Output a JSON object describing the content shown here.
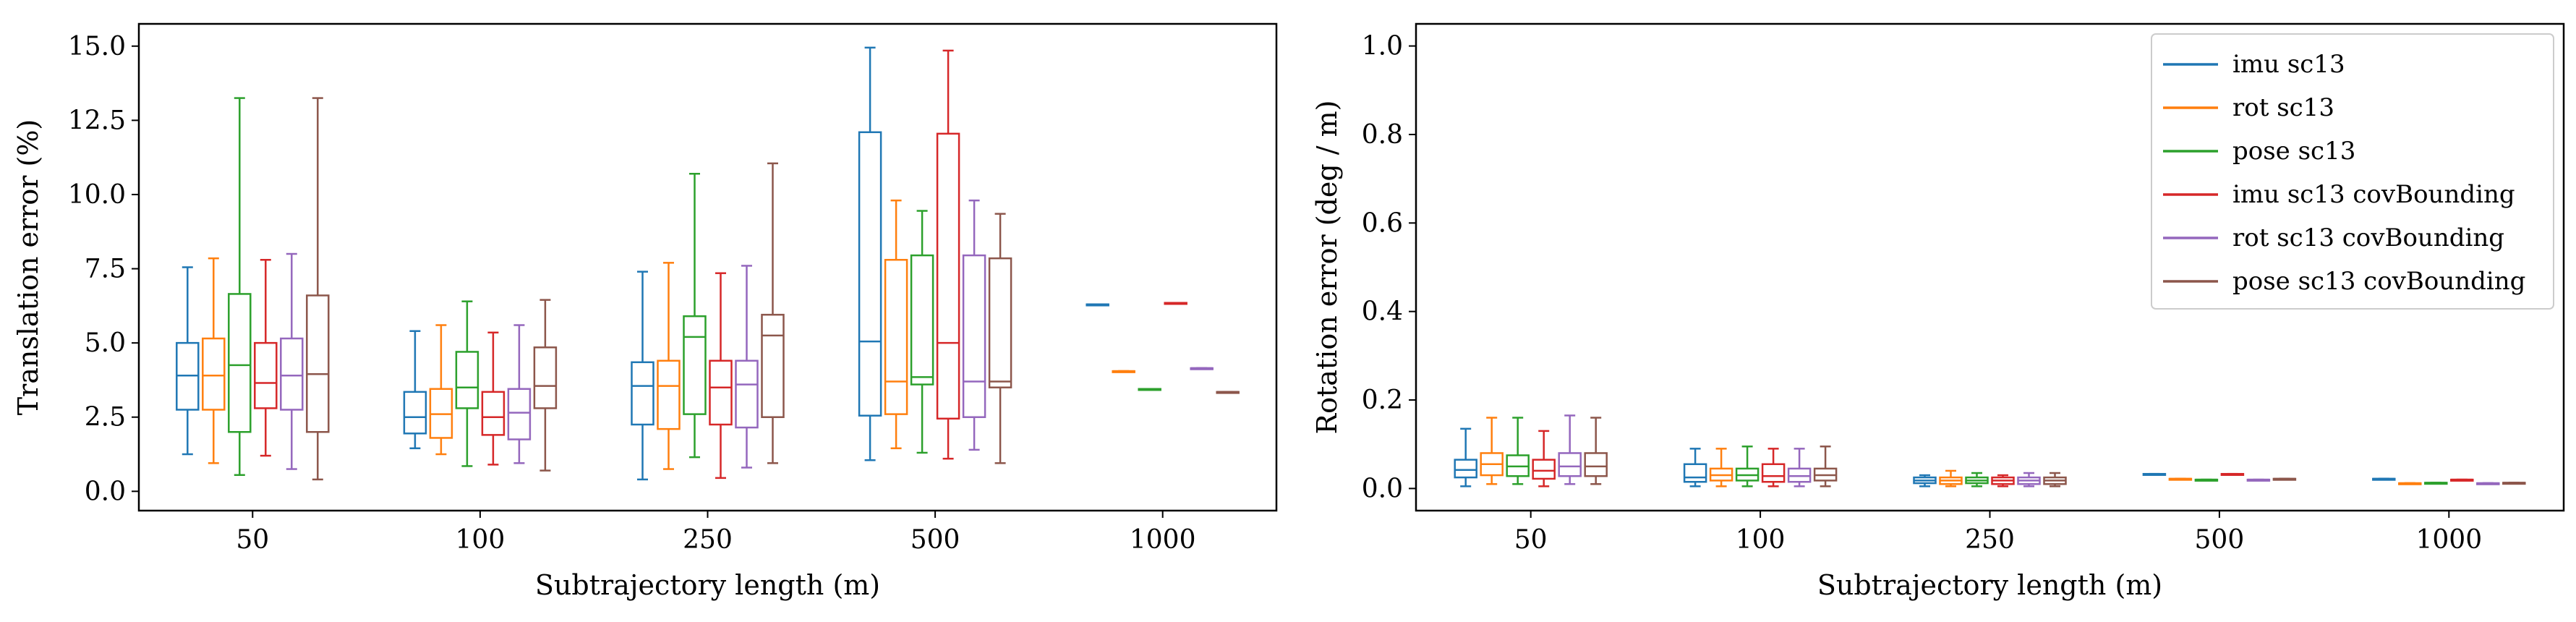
{
  "chart_data": [
    {
      "type": "box",
      "xlabel": "Subtrajectory length (m)",
      "ylabel": "Translation error (%)",
      "ylim": [
        -0.65,
        15.75
      ],
      "yticks": [
        0.0,
        2.5,
        5.0,
        7.5,
        10.0,
        12.5,
        15.0
      ],
      "ytick_labels": [
        "0.0",
        "2.5",
        "5.0",
        "7.5",
        "10.0",
        "12.5",
        "15.0"
      ],
      "categories": [
        "50",
        "100",
        "250",
        "500",
        "1000"
      ],
      "series": [
        {
          "name": "imu sc13",
          "color": "#1f77b4",
          "boxes": [
            {
              "whislo": 1.25,
              "q1": 2.75,
              "med": 3.9,
              "q3": 5.0,
              "whishi": 7.55
            },
            {
              "whislo": 1.45,
              "q1": 1.95,
              "med": 2.5,
              "q3": 3.35,
              "whishi": 5.4
            },
            {
              "whislo": 0.4,
              "q1": 2.25,
              "med": 3.55,
              "q3": 4.35,
              "whishi": 7.4
            },
            {
              "whislo": 1.05,
              "q1": 2.55,
              "med": 5.05,
              "q3": 12.1,
              "whishi": 14.95
            },
            {
              "whislo": 6.3,
              "q1": 6.3,
              "med": 6.3,
              "q3": 6.3,
              "whishi": 6.3
            }
          ]
        },
        {
          "name": "rot sc13",
          "color": "#ff7f0e",
          "boxes": [
            {
              "whislo": 0.95,
              "q1": 2.75,
              "med": 3.9,
              "q3": 5.15,
              "whishi": 7.85
            },
            {
              "whislo": 1.25,
              "q1": 1.8,
              "med": 2.6,
              "q3": 3.45,
              "whishi": 5.6
            },
            {
              "whislo": 0.75,
              "q1": 2.1,
              "med": 3.55,
              "q3": 4.4,
              "whishi": 7.7
            },
            {
              "whislo": 1.45,
              "q1": 2.6,
              "med": 3.7,
              "q3": 7.8,
              "whishi": 9.8
            },
            {
              "whislo": 4.05,
              "q1": 4.05,
              "med": 4.05,
              "q3": 4.05,
              "whishi": 4.05
            }
          ]
        },
        {
          "name": "pose sc13",
          "color": "#2ca02c",
          "boxes": [
            {
              "whislo": 0.55,
              "q1": 2.0,
              "med": 4.25,
              "q3": 6.65,
              "whishi": 13.25
            },
            {
              "whislo": 0.85,
              "q1": 2.8,
              "med": 3.5,
              "q3": 4.7,
              "whishi": 6.4
            },
            {
              "whislo": 1.15,
              "q1": 2.6,
              "med": 5.2,
              "q3": 5.9,
              "whishi": 10.7
            },
            {
              "whislo": 1.3,
              "q1": 3.6,
              "med": 3.85,
              "q3": 7.95,
              "whishi": 9.45
            },
            {
              "whislo": 3.45,
              "q1": 3.45,
              "med": 3.45,
              "q3": 3.45,
              "whishi": 3.45
            }
          ]
        },
        {
          "name": "imu sc13 covBounding",
          "color": "#d62728",
          "boxes": [
            {
              "whislo": 1.2,
              "q1": 2.8,
              "med": 3.65,
              "q3": 5.0,
              "whishi": 7.8
            },
            {
              "whislo": 0.9,
              "q1": 1.9,
              "med": 2.5,
              "q3": 3.35,
              "whishi": 5.35
            },
            {
              "whislo": 0.45,
              "q1": 2.25,
              "med": 3.5,
              "q3": 4.4,
              "whishi": 7.35
            },
            {
              "whislo": 1.1,
              "q1": 2.45,
              "med": 5.0,
              "q3": 12.05,
              "whishi": 14.85
            },
            {
              "whislo": 6.35,
              "q1": 6.35,
              "med": 6.35,
              "q3": 6.35,
              "whishi": 6.35
            }
          ]
        },
        {
          "name": "rot sc13 covBounding",
          "color": "#9467bd",
          "boxes": [
            {
              "whislo": 0.75,
              "q1": 2.75,
              "med": 3.9,
              "q3": 5.15,
              "whishi": 8.0
            },
            {
              "whislo": 0.95,
              "q1": 1.75,
              "med": 2.65,
              "q3": 3.45,
              "whishi": 5.6
            },
            {
              "whislo": 0.8,
              "q1": 2.15,
              "med": 3.6,
              "q3": 4.4,
              "whishi": 7.6
            },
            {
              "whislo": 1.4,
              "q1": 2.5,
              "med": 3.7,
              "q3": 7.95,
              "whishi": 9.8
            },
            {
              "whislo": 4.15,
              "q1": 4.15,
              "med": 4.15,
              "q3": 4.15,
              "whishi": 4.15
            }
          ]
        },
        {
          "name": "pose sc13 covBounding",
          "color": "#8c564b",
          "boxes": [
            {
              "whislo": 0.4,
              "q1": 2.0,
              "med": 3.95,
              "q3": 6.6,
              "whishi": 13.25
            },
            {
              "whislo": 0.7,
              "q1": 2.8,
              "med": 3.55,
              "q3": 4.85,
              "whishi": 6.45
            },
            {
              "whislo": 0.95,
              "q1": 2.5,
              "med": 5.25,
              "q3": 5.95,
              "whishi": 11.05
            },
            {
              "whislo": 0.95,
              "q1": 3.5,
              "med": 3.7,
              "q3": 7.85,
              "whishi": 9.35
            },
            {
              "whislo": 3.35,
              "q1": 3.35,
              "med": 3.35,
              "q3": 3.35,
              "whishi": 3.35
            }
          ]
        }
      ]
    },
    {
      "type": "box",
      "xlabel": "Subtrajectory length (m)",
      "ylabel": "Rotation error (deg / m)",
      "ylim": [
        -0.05,
        1.05
      ],
      "yticks": [
        0.0,
        0.2,
        0.4,
        0.6,
        0.8,
        1.0
      ],
      "ytick_labels": [
        "0.0",
        "0.2",
        "0.4",
        "0.6",
        "0.8",
        "1.0"
      ],
      "categories": [
        "50",
        "100",
        "250",
        "500",
        "1000"
      ],
      "legend": {
        "placement": "top-right"
      },
      "series": [
        {
          "name": "imu sc13",
          "color": "#1f77b4",
          "boxes": [
            {
              "whislo": 0.005,
              "q1": 0.025,
              "med": 0.042,
              "q3": 0.065,
              "whishi": 0.135
            },
            {
              "whislo": 0.005,
              "q1": 0.015,
              "med": 0.025,
              "q3": 0.055,
              "whishi": 0.09
            },
            {
              "whislo": 0.005,
              "q1": 0.012,
              "med": 0.018,
              "q3": 0.025,
              "whishi": 0.03
            },
            {
              "whislo": 0.033,
              "q1": 0.033,
              "med": 0.033,
              "q3": 0.033,
              "whishi": 0.033
            },
            {
              "whislo": 0.022,
              "q1": 0.022,
              "med": 0.022,
              "q3": 0.022,
              "whishi": 0.022
            }
          ]
        },
        {
          "name": "rot sc13",
          "color": "#ff7f0e",
          "boxes": [
            {
              "whislo": 0.01,
              "q1": 0.03,
              "med": 0.055,
              "q3": 0.08,
              "whishi": 0.16
            },
            {
              "whislo": 0.005,
              "q1": 0.018,
              "med": 0.03,
              "q3": 0.045,
              "whishi": 0.09
            },
            {
              "whislo": 0.005,
              "q1": 0.01,
              "med": 0.018,
              "q3": 0.025,
              "whishi": 0.04
            },
            {
              "whislo": 0.022,
              "q1": 0.022,
              "med": 0.022,
              "q3": 0.022,
              "whishi": 0.022
            },
            {
              "whislo": 0.012,
              "q1": 0.012,
              "med": 0.012,
              "q3": 0.012,
              "whishi": 0.012
            }
          ]
        },
        {
          "name": "pose sc13",
          "color": "#2ca02c",
          "boxes": [
            {
              "whislo": 0.01,
              "q1": 0.028,
              "med": 0.05,
              "q3": 0.075,
              "whishi": 0.16
            },
            {
              "whislo": 0.005,
              "q1": 0.018,
              "med": 0.03,
              "q3": 0.045,
              "whishi": 0.095
            },
            {
              "whislo": 0.005,
              "q1": 0.012,
              "med": 0.018,
              "q3": 0.025,
              "whishi": 0.035
            },
            {
              "whislo": 0.02,
              "q1": 0.02,
              "med": 0.02,
              "q3": 0.02,
              "whishi": 0.02
            },
            {
              "whislo": 0.013,
              "q1": 0.013,
              "med": 0.013,
              "q3": 0.013,
              "whishi": 0.013
            }
          ]
        },
        {
          "name": "imu sc13 covBounding",
          "color": "#d62728",
          "boxes": [
            {
              "whislo": 0.005,
              "q1": 0.022,
              "med": 0.04,
              "q3": 0.065,
              "whishi": 0.13
            },
            {
              "whislo": 0.005,
              "q1": 0.015,
              "med": 0.028,
              "q3": 0.055,
              "whishi": 0.09
            },
            {
              "whislo": 0.005,
              "q1": 0.01,
              "med": 0.018,
              "q3": 0.025,
              "whishi": 0.03
            },
            {
              "whislo": 0.033,
              "q1": 0.033,
              "med": 0.033,
              "q3": 0.033,
              "whishi": 0.033
            },
            {
              "whislo": 0.02,
              "q1": 0.02,
              "med": 0.02,
              "q3": 0.02,
              "whishi": 0.02
            }
          ]
        },
        {
          "name": "rot sc13 covBounding",
          "color": "#9467bd",
          "boxes": [
            {
              "whislo": 0.01,
              "q1": 0.028,
              "med": 0.05,
              "q3": 0.08,
              "whishi": 0.165
            },
            {
              "whislo": 0.005,
              "q1": 0.015,
              "med": 0.028,
              "q3": 0.045,
              "whishi": 0.09
            },
            {
              "whislo": 0.005,
              "q1": 0.01,
              "med": 0.018,
              "q3": 0.025,
              "whishi": 0.035
            },
            {
              "whislo": 0.02,
              "q1": 0.02,
              "med": 0.02,
              "q3": 0.02,
              "whishi": 0.02
            },
            {
              "whislo": 0.012,
              "q1": 0.012,
              "med": 0.012,
              "q3": 0.012,
              "whishi": 0.012
            }
          ]
        },
        {
          "name": "pose sc13 covBounding",
          "color": "#8c564b",
          "boxes": [
            {
              "whislo": 0.01,
              "q1": 0.028,
              "med": 0.05,
              "q3": 0.08,
              "whishi": 0.16
            },
            {
              "whislo": 0.005,
              "q1": 0.018,
              "med": 0.03,
              "q3": 0.045,
              "whishi": 0.095
            },
            {
              "whislo": 0.005,
              "q1": 0.01,
              "med": 0.018,
              "q3": 0.025,
              "whishi": 0.035
            },
            {
              "whislo": 0.022,
              "q1": 0.022,
              "med": 0.022,
              "q3": 0.022,
              "whishi": 0.022
            },
            {
              "whislo": 0.013,
              "q1": 0.013,
              "med": 0.013,
              "q3": 0.013,
              "whishi": 0.013
            }
          ]
        }
      ]
    }
  ]
}
